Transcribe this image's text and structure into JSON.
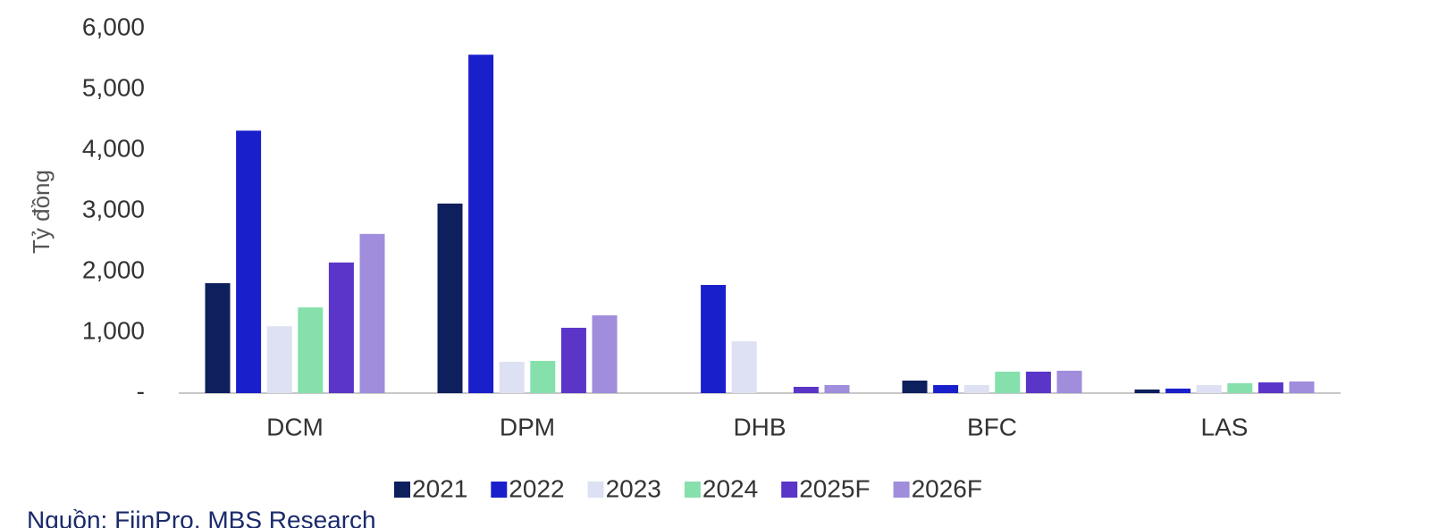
{
  "chart_data": {
    "type": "bar",
    "y_label": "Tỷ đồng",
    "categories": [
      "DCM",
      "DPM",
      "DHB",
      "BFC",
      "LAS"
    ],
    "series": [
      {
        "name": "2021",
        "color": "#0d1f5c",
        "values": [
          1810,
          3120,
          0,
          206,
          59
        ]
      },
      {
        "name": "2022",
        "color": "#1a1fcc",
        "values": [
          4320,
          5570,
          1780,
          132,
          74
        ]
      },
      {
        "name": "2023",
        "color": "#dde1f3",
        "values": [
          1100,
          515,
          853,
          132,
          132
        ]
      },
      {
        "name": "2024",
        "color": "#86e0ab",
        "values": [
          1410,
          530,
          0,
          353,
          162
        ]
      },
      {
        "name": "2025F",
        "color": "#5a35c8",
        "values": [
          2150,
          1075,
          103,
          353,
          176
        ]
      },
      {
        "name": "2026F",
        "color": "#a08ddc",
        "values": [
          2620,
          1280,
          132,
          368,
          191
        ]
      }
    ],
    "ylim": [
      0,
      6000
    ],
    "yticks": [
      {
        "value": 0,
        "label": "-"
      },
      {
        "value": 1000,
        "label": "1,000"
      },
      {
        "value": 2000,
        "label": "2,000"
      },
      {
        "value": 3000,
        "label": "3,000"
      },
      {
        "value": 4000,
        "label": "4,000"
      },
      {
        "value": 5000,
        "label": "5,000"
      },
      {
        "value": 6000,
        "label": "6,000"
      }
    ],
    "source": "Nguồn: FiinPro, MBS Research"
  }
}
